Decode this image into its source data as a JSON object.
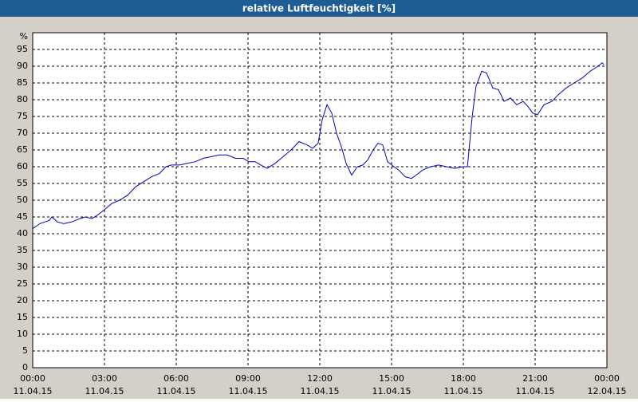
{
  "chart_data": {
    "type": "line",
    "title": "relative Luftfeuchtigkeit [%]",
    "y_label": "%",
    "x": [
      0,
      0.3,
      0.7,
      0.8,
      1.03,
      1.3,
      1.63,
      1.97,
      2.2,
      2.47,
      2.7,
      2.97,
      3.3,
      3.63,
      3.97,
      4.3,
      4.63,
      4.97,
      5.3,
      5.57,
      5.8,
      6.13,
      6.47,
      6.8,
      7.13,
      7.47,
      7.8,
      8.13,
      8.47,
      8.8,
      9.03,
      9.3,
      9.53,
      9.8,
      10.13,
      10.47,
      10.8,
      11.13,
      11.47,
      11.7,
      11.93,
      12.1,
      12.3,
      12.5,
      12.7,
      12.9,
      13.1,
      13.33,
      13.57,
      13.8,
      14,
      14.23,
      14.43,
      14.63,
      14.83,
      15.1,
      15.3,
      15.57,
      15.83,
      16.03,
      16.3,
      16.63,
      16.97,
      17.3,
      17.63,
      17.97,
      18.17,
      18.37,
      18.53,
      18.77,
      18.97,
      19.23,
      19.47,
      19.7,
      19.97,
      20.23,
      20.5,
      20.7,
      20.9,
      21.1,
      21.37,
      21.7,
      21.97,
      22.3,
      22.63,
      22.97,
      23.3,
      23.63,
      23.8,
      23.87
    ],
    "series": [
      {
        "name": "relative Luftfeuchtigkeit",
        "color": "#0000c0",
        "values": [
          41.5,
          43,
          44,
          45,
          43.5,
          43,
          43.5,
          44.5,
          45,
          44.5,
          45.5,
          47,
          49,
          50,
          51.5,
          54,
          55.5,
          57,
          58,
          60,
          60.5,
          60.5,
          61,
          61.5,
          62.5,
          63,
          63.5,
          63.5,
          62.5,
          62.5,
          61.5,
          61.5,
          60.5,
          59.5,
          61,
          63,
          65,
          67.5,
          66.5,
          65.5,
          67,
          74,
          78.5,
          76,
          70,
          66,
          61,
          57.5,
          60,
          60.5,
          62,
          65,
          67,
          66.5,
          61.5,
          60,
          59,
          57,
          56.5,
          57.5,
          59,
          60,
          60.5,
          60,
          59.5,
          60,
          60,
          75,
          84,
          88.5,
          88,
          83.5,
          83,
          79.5,
          80.5,
          78.5,
          79.5,
          78,
          76,
          75.5,
          78.5,
          79.5,
          81.5,
          83.5,
          85,
          86.5,
          88.5,
          90,
          91,
          90.5
        ]
      }
    ],
    "xlim": [
      0,
      24
    ],
    "ylim": [
      0,
      100
    ],
    "xticks": [
      {
        "value": 0,
        "label": "00:00",
        "date": "11.04.15"
      },
      {
        "value": 3,
        "label": "03:00",
        "date": "11.04.15"
      },
      {
        "value": 6,
        "label": "06:00",
        "date": "11.04.15"
      },
      {
        "value": 9,
        "label": "09:00",
        "date": "11.04.15"
      },
      {
        "value": 12,
        "label": "12:00",
        "date": "11.04.15"
      },
      {
        "value": 15,
        "label": "15:00",
        "date": "11.04.15"
      },
      {
        "value": 18,
        "label": "18:00",
        "date": "11.04.15"
      },
      {
        "value": 21,
        "label": "21:00",
        "date": "11.04.15"
      },
      {
        "value": 24,
        "label": "00:00",
        "date": "12.04.15"
      }
    ],
    "yticks": [
      0,
      5,
      10,
      15,
      20,
      25,
      30,
      35,
      40,
      45,
      50,
      55,
      60,
      65,
      70,
      75,
      80,
      85,
      90,
      95
    ],
    "grid": true
  }
}
